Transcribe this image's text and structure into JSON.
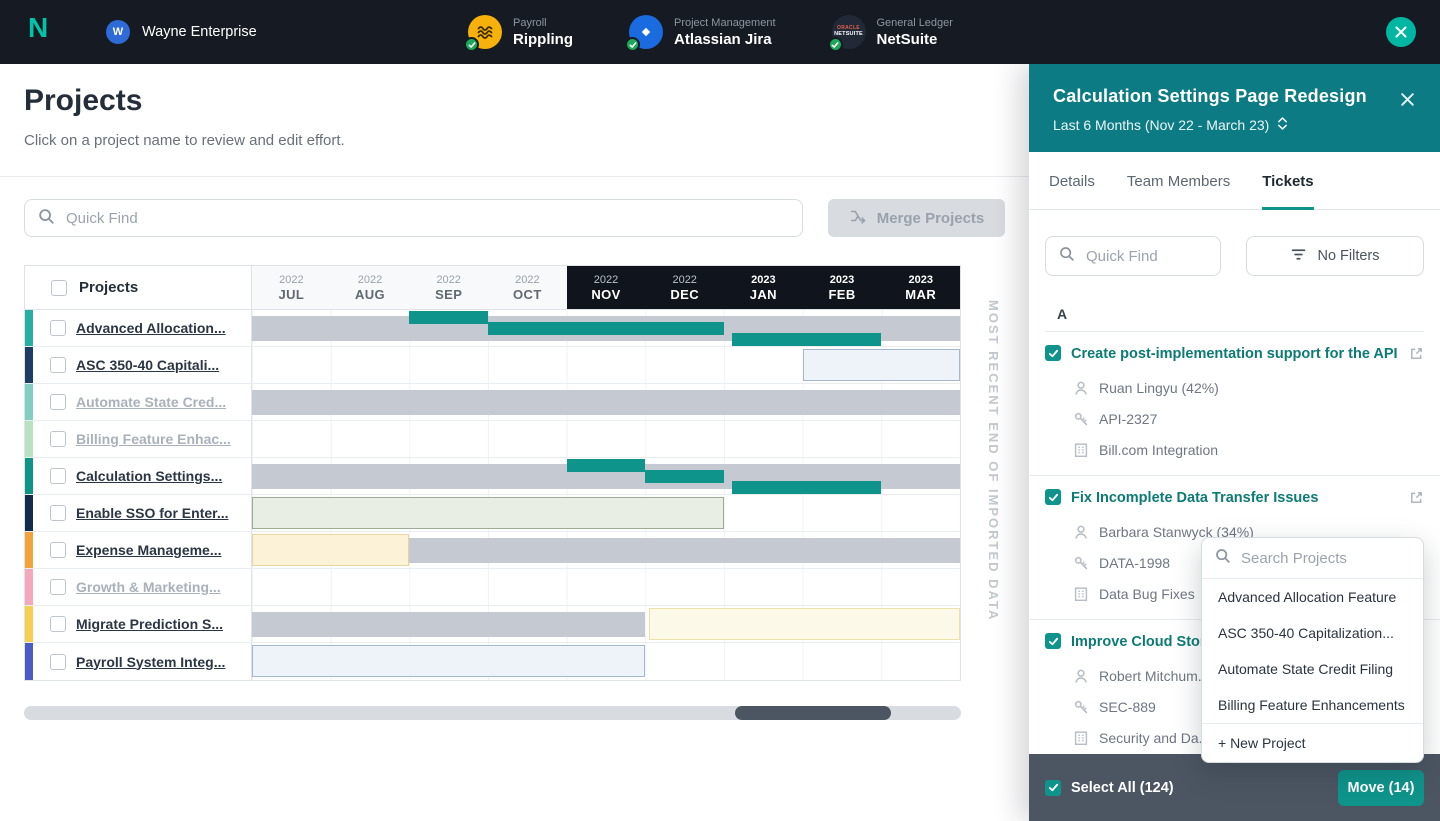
{
  "colors": {
    "topbar_dark": "#151a23",
    "accent_teal": "#0e948b",
    "brand_teal": "#00c3a8",
    "panel_header_teal": "#0d7b84",
    "footer_dark": "#4c5663",
    "gantt_gray": "#c5cad2",
    "connected_green": "#1ea75a"
  },
  "topbar": {
    "company": "Wayne Enterprise",
    "integrations": [
      {
        "category": "Payroll",
        "name": "Rippling",
        "icon": "rippling-icon"
      },
      {
        "category": "Project Management",
        "name": "Atlassian Jira",
        "icon": "jira-icon"
      },
      {
        "category": "General Ledger",
        "name": "NetSuite",
        "icon": "netsuite-icon"
      }
    ]
  },
  "main": {
    "title": "Projects",
    "subtitle": "Click on a project name to review and edit effort.",
    "search_placeholder": "Quick Find",
    "merge_button": "Merge Projects",
    "imported_label": "MOST RECENT END OF IMPORTED DATA",
    "table": {
      "header_label": "Projects",
      "months": [
        {
          "year": "2022",
          "label": "JUL",
          "dark": false,
          "bold": false
        },
        {
          "year": "2022",
          "label": "AUG",
          "dark": false,
          "bold": false
        },
        {
          "year": "2022",
          "label": "SEP",
          "dark": false,
          "bold": false
        },
        {
          "year": "2022",
          "label": "OCT",
          "dark": false,
          "bold": false
        },
        {
          "year": "2022",
          "label": "NOV",
          "dark": true,
          "bold": false
        },
        {
          "year": "2022",
          "label": "DEC",
          "dark": true,
          "bold": false
        },
        {
          "year": "2023",
          "label": "JAN",
          "dark": true,
          "bold": true
        },
        {
          "year": "2023",
          "label": "FEB",
          "dark": true,
          "bold": true
        },
        {
          "year": "2023",
          "label": "MAR",
          "dark": true,
          "bold": true
        }
      ],
      "rows": [
        {
          "name": "Advanced Allocation...",
          "color": "#27b0a0",
          "muted": false,
          "segments": [
            {
              "t": "gray",
              "s": 0,
              "e": 9
            },
            {
              "t": "teal",
              "p": 0,
              "s": 2,
              "e": 3
            },
            {
              "t": "teal",
              "p": 1,
              "s": 3,
              "e": 6
            },
            {
              "t": "teal",
              "p": 2,
              "s": 6.1,
              "e": 8
            }
          ]
        },
        {
          "name": "ASC 350-40 Capitali...",
          "color": "#1d3d63",
          "muted": false,
          "segments": [
            {
              "t": "box-blue",
              "s": 7,
              "e": 9
            }
          ]
        },
        {
          "name": "Automate State Cred...",
          "color": "#82cfc2",
          "muted": true,
          "segments": [
            {
              "t": "gray",
              "s": 0,
              "e": 9
            }
          ]
        },
        {
          "name": "Billing Feature Enhac...",
          "color": "#b8e3c0",
          "muted": true,
          "segments": []
        },
        {
          "name": "Calculation Settings...",
          "color": "#0f9488",
          "muted": false,
          "segments": [
            {
              "t": "gray",
              "s": 0,
              "e": 9
            },
            {
              "t": "teal",
              "p": 0,
              "s": 4,
              "e": 5
            },
            {
              "t": "teal",
              "p": 1,
              "s": 5,
              "e": 6
            },
            {
              "t": "teal",
              "p": 2,
              "s": 6.1,
              "e": 8
            }
          ]
        },
        {
          "name": "Enable SSO for Enter...",
          "color": "#132c49",
          "muted": false,
          "segments": [
            {
              "t": "box-green",
              "s": 0,
              "e": 6
            }
          ]
        },
        {
          "name": "Expense Manageme...",
          "color": "#f2a33c",
          "muted": false,
          "segments": [
            {
              "t": "box-cream",
              "s": 0,
              "e": 2
            },
            {
              "t": "gray",
              "s": 2,
              "e": 9
            }
          ]
        },
        {
          "name": "Growth & Marketing...",
          "color": "#f3a8bc",
          "muted": true,
          "segments": []
        },
        {
          "name": "Migrate Prediction S...",
          "color": "#f6cf4e",
          "muted": false,
          "segments": [
            {
              "t": "gray",
              "s": 0,
              "e": 5
            },
            {
              "t": "box-pale",
              "s": 5.05,
              "e": 9
            }
          ]
        },
        {
          "name": "Payroll System Integ...",
          "color": "#4a5cc5",
          "muted": false,
          "segments": [
            {
              "t": "box-blue",
              "s": 0,
              "e": 5
            }
          ]
        }
      ]
    }
  },
  "panel": {
    "title": "Calculation Settings Page Redesign",
    "subtitle": "Last 6 Months (Nov 22 - March 23)",
    "tabs": [
      "Details",
      "Team Members",
      "Tickets"
    ],
    "active_tab": "Tickets",
    "search_placeholder": "Quick Find",
    "filters_label": "No Filters",
    "section_letter": "A",
    "tickets": [
      {
        "title": "Create post-implementation support for the API",
        "assignee": "Ruan Lingyu (42%)",
        "ticket": "API-2327",
        "project": "Bill.com Integration",
        "checked": true
      },
      {
        "title": "Fix Incomplete Data Transfer Issues",
        "assignee": "Barbara Stanwyck (34%)",
        "ticket": "DATA-1998",
        "project": "Data Bug Fixes",
        "checked": true
      },
      {
        "title": "Improve Cloud Stora...",
        "assignee": "Robert Mitchum...",
        "ticket": "SEC-889",
        "project": "Security and Da...",
        "checked": true
      }
    ],
    "popup": {
      "search_placeholder": "Search Projects",
      "options": [
        "Advanced Allocation Feature",
        "ASC 350-40 Capitalization...",
        "Automate State Credit Filing",
        "Billing Feature Enhancements"
      ],
      "new_option": "+ New Project"
    },
    "footer": {
      "select_all": "Select All (124)",
      "move_button": "Move (14)"
    }
  }
}
